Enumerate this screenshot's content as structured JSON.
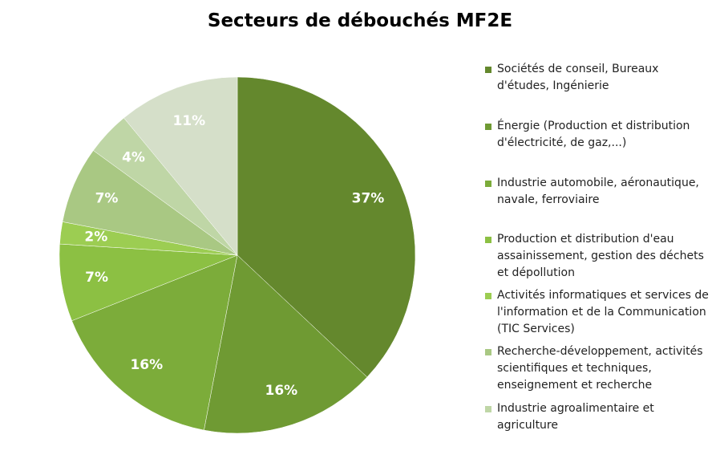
{
  "chart_data": {
    "type": "pie",
    "title": "Secteurs de débouchés MF2E",
    "categories": [
      "Sociétés de conseil, Bureaux d'études, Ingénierie",
      "Énergie (Production et distribution d'électricité, de gaz,...)",
      "Industrie automobile, aéronautique, navale, ferroviaire",
      "Production et distribution d'eau assainissement, gestion des déchets et dépollution",
      "Activités informatiques et services de l'information et de la Communication (TIC Services)",
      "Recherche-développement, activités scientifiques et techniques, enseignement et recherche",
      "Industrie agroalimentaire et agriculture",
      null
    ],
    "values": [
      37,
      16,
      16,
      7,
      2,
      7,
      4,
      11
    ],
    "value_labels": [
      "37%",
      "16%",
      "16%",
      "7%",
      "2%",
      "7%",
      "4%",
      "11%"
    ],
    "colors": [
      "#64882d",
      "#6f9a33",
      "#7cac3a",
      "#8cc043",
      "#9ccd52",
      "#a9c883",
      "#bfd6a6",
      "#d5dfc9"
    ],
    "legend": "right"
  }
}
